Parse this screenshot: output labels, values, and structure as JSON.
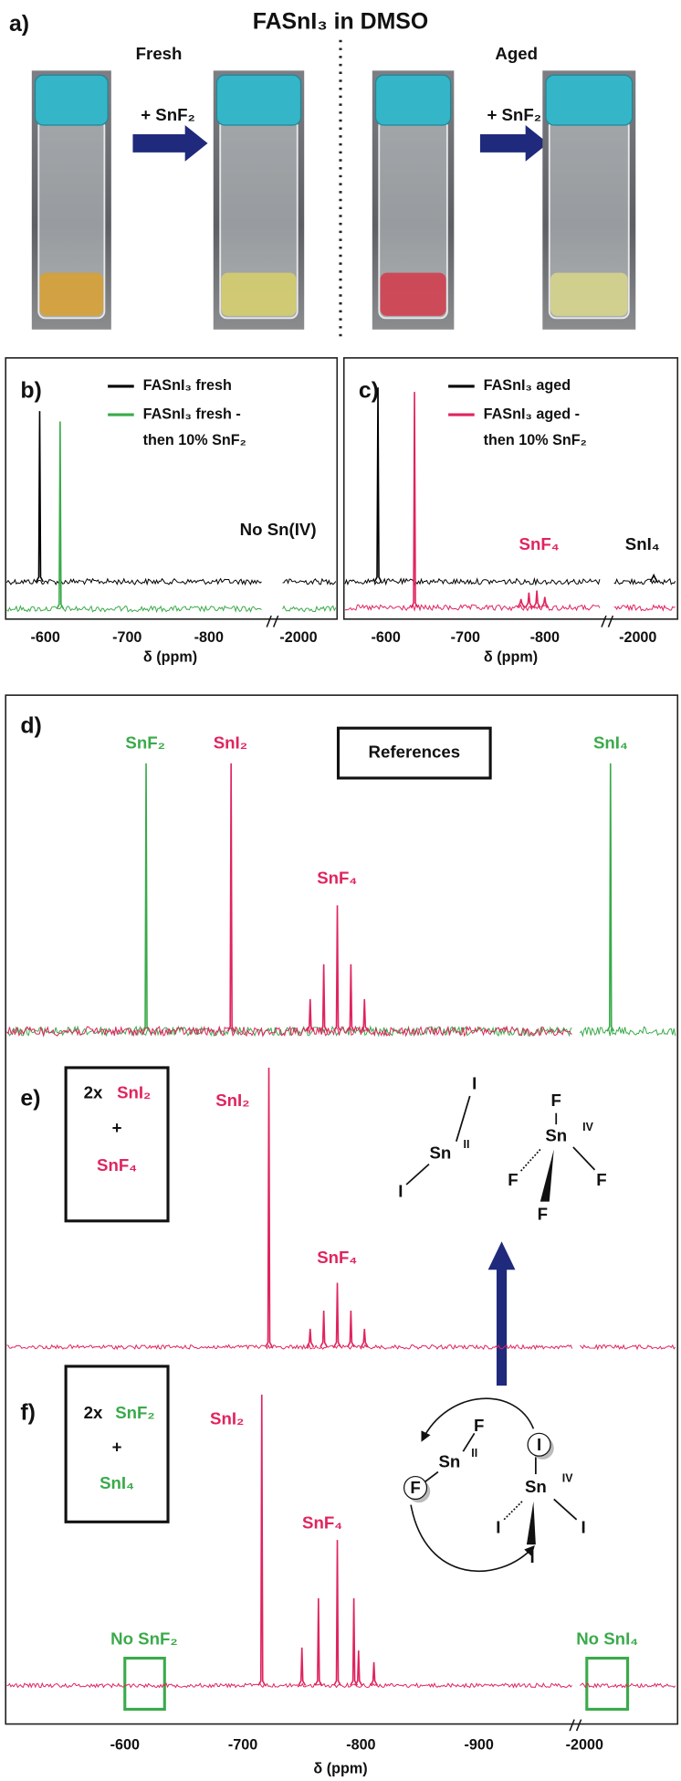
{
  "panel_a": {
    "label": "a)",
    "title": "FASnI₃ in DMSO",
    "fresh": "Fresh",
    "aged": "Aged",
    "arrow_labels": [
      "+ SnF₂",
      "+ SnF₂"
    ]
  },
  "panel_b": {
    "label": "b)",
    "annotation": "No Sn(IV)",
    "series": [
      {
        "name_lines": [
          "FASnI₃ fresh"
        ],
        "color": "#000000",
        "peaks_ppm": [
          -593
        ],
        "peaks_height": [
          0.91
        ]
      },
      {
        "name_lines": [
          "FASnI₃ fresh -",
          "then 10% SnF₂"
        ],
        "color": "#3aaa4a",
        "peaks_ppm": [
          -618
        ],
        "peaks_height": [
          1
        ]
      }
    ],
    "xticks": [
      -600,
      -700,
      -800,
      -2000
    ],
    "xlabel": "δ (ppm)"
  },
  "panel_c": {
    "label": "c)",
    "annotations": [
      "SnF₄",
      "SnI₄"
    ],
    "series": [
      {
        "name_lines": [
          "FASnI₃ aged"
        ],
        "color": "#000000",
        "peaks_ppm": [
          -590,
          -2020
        ],
        "peaks_height": [
          0.9,
          0.03
        ]
      },
      {
        "name_lines": [
          "FASnI₃ aged -",
          "then 10% SnF₂"
        ],
        "color": "#e0245e",
        "peaks_ppm": [
          -636,
          -770,
          -780,
          -790,
          -800
        ],
        "peaks_height": [
          1,
          0.04,
          0.07,
          0.08,
          0.05
        ]
      }
    ],
    "xticks": [
      -600,
      -700,
      -800,
      -2000
    ],
    "xlabel": "δ (ppm)"
  },
  "panel_d": {
    "label": "d)",
    "box": "References",
    "annotations": [
      "SnF₂",
      "SnI₂",
      "SnF₄",
      "SnI₄"
    ],
    "series": [
      {
        "color": "#3aaa4a",
        "peaks_ppm": [
          -618,
          -2022
        ],
        "peaks_height": [
          1,
          1
        ]
      },
      {
        "color": "#e0245e",
        "peaks_ppm": [
          -690,
          -757,
          -768.5,
          -780,
          -791.5,
          -803
        ],
        "peaks_height": [
          1,
          0.12,
          0.25,
          0.47,
          0.25,
          0.12
        ]
      }
    ]
  },
  "panel_e": {
    "label": "e)",
    "box": [
      "2x",
      "SnI₂",
      "+",
      "SnF₄"
    ],
    "annotations": [
      "SnI₂",
      "SnF₄"
    ],
    "structure_labels": [
      "I",
      "Sn",
      "II",
      "I",
      "F",
      "Sn",
      "IV",
      "F",
      "F",
      "F"
    ],
    "series": [
      {
        "color": "#e0245e",
        "peaks_ppm": [
          -722,
          -757,
          -768.5,
          -780,
          -791.5,
          -803
        ],
        "peaks_height": [
          1,
          0.065,
          0.13,
          0.23,
          0.13,
          0.065
        ]
      }
    ]
  },
  "panel_f": {
    "label": "f)",
    "box": [
      "2x",
      "SnF₂",
      "+",
      "SnI₄"
    ],
    "annotations": [
      "SnI₂",
      "SnF₄",
      "No SnF₂",
      "No SnI₄"
    ],
    "structure_labels": [
      "F",
      "Sn",
      "II",
      "F",
      "I",
      "Sn",
      "IV",
      "I",
      "I",
      "I"
    ],
    "series": [
      {
        "color": "#e0245e",
        "peaks_ppm": [
          -716,
          -750,
          -764,
          -780,
          -794,
          -798,
          -811
        ],
        "peaks_height": [
          1,
          0.13,
          0.3,
          0.5,
          0.3,
          0.12,
          0.08
        ]
      }
    ],
    "xticks": [
      -600,
      -700,
      -800,
      -900,
      -2000
    ],
    "xlabel": "δ (ppm)"
  }
}
